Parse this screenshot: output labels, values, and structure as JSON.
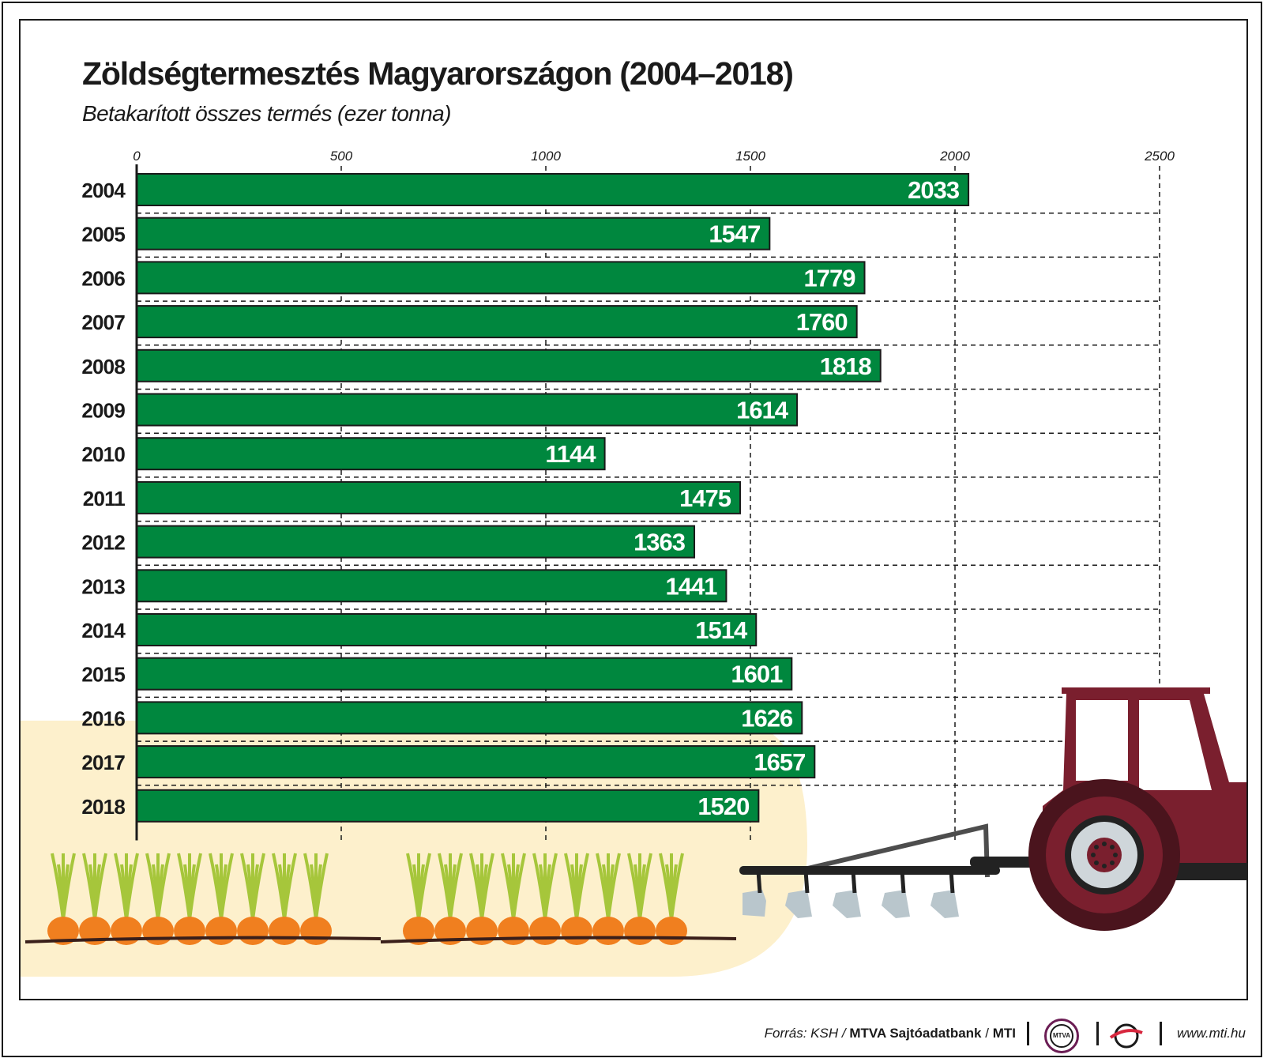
{
  "header": {
    "title": "Zöldségtermesztés Magyarországon (2004–2018)",
    "subtitle": "Betakarított összes termés (ezer tonna)"
  },
  "chart_data": {
    "type": "bar",
    "orientation": "horizontal",
    "title": "Zöldségtermesztés Magyarországon (2004–2018)",
    "subtitle": "Betakarított összes termés (ezer tonna)",
    "xlabel": "",
    "ylabel": "",
    "xlim": [
      0,
      2500
    ],
    "x_ticks": [
      0,
      500,
      1000,
      1500,
      2000,
      2500
    ],
    "categories": [
      "2004",
      "2005",
      "2006",
      "2007",
      "2008",
      "2009",
      "2010",
      "2011",
      "2012",
      "2013",
      "2014",
      "2015",
      "2016",
      "2017",
      "2018"
    ],
    "values": [
      2033,
      1547,
      1779,
      1760,
      1818,
      1614,
      1144,
      1475,
      1363,
      1441,
      1514,
      1601,
      1626,
      1657,
      1520
    ],
    "grid": "dashed",
    "bar_color": "#00873e"
  },
  "footer": {
    "source_prefix": "Forrás: KSH /",
    "source_bold": "MTVA Sajtóadatbank",
    "source_sep": "/",
    "source_org": "MTI",
    "mtva_logo_text": "MTVA",
    "url": "www.mti.hu"
  },
  "colors": {
    "bar": "#00873e",
    "background_field": "#fdf0cc",
    "tractor": "#7a1f2e",
    "carrot": "#f07f1f",
    "leaf": "#a6c63b",
    "plough": "#b9c6cc"
  }
}
